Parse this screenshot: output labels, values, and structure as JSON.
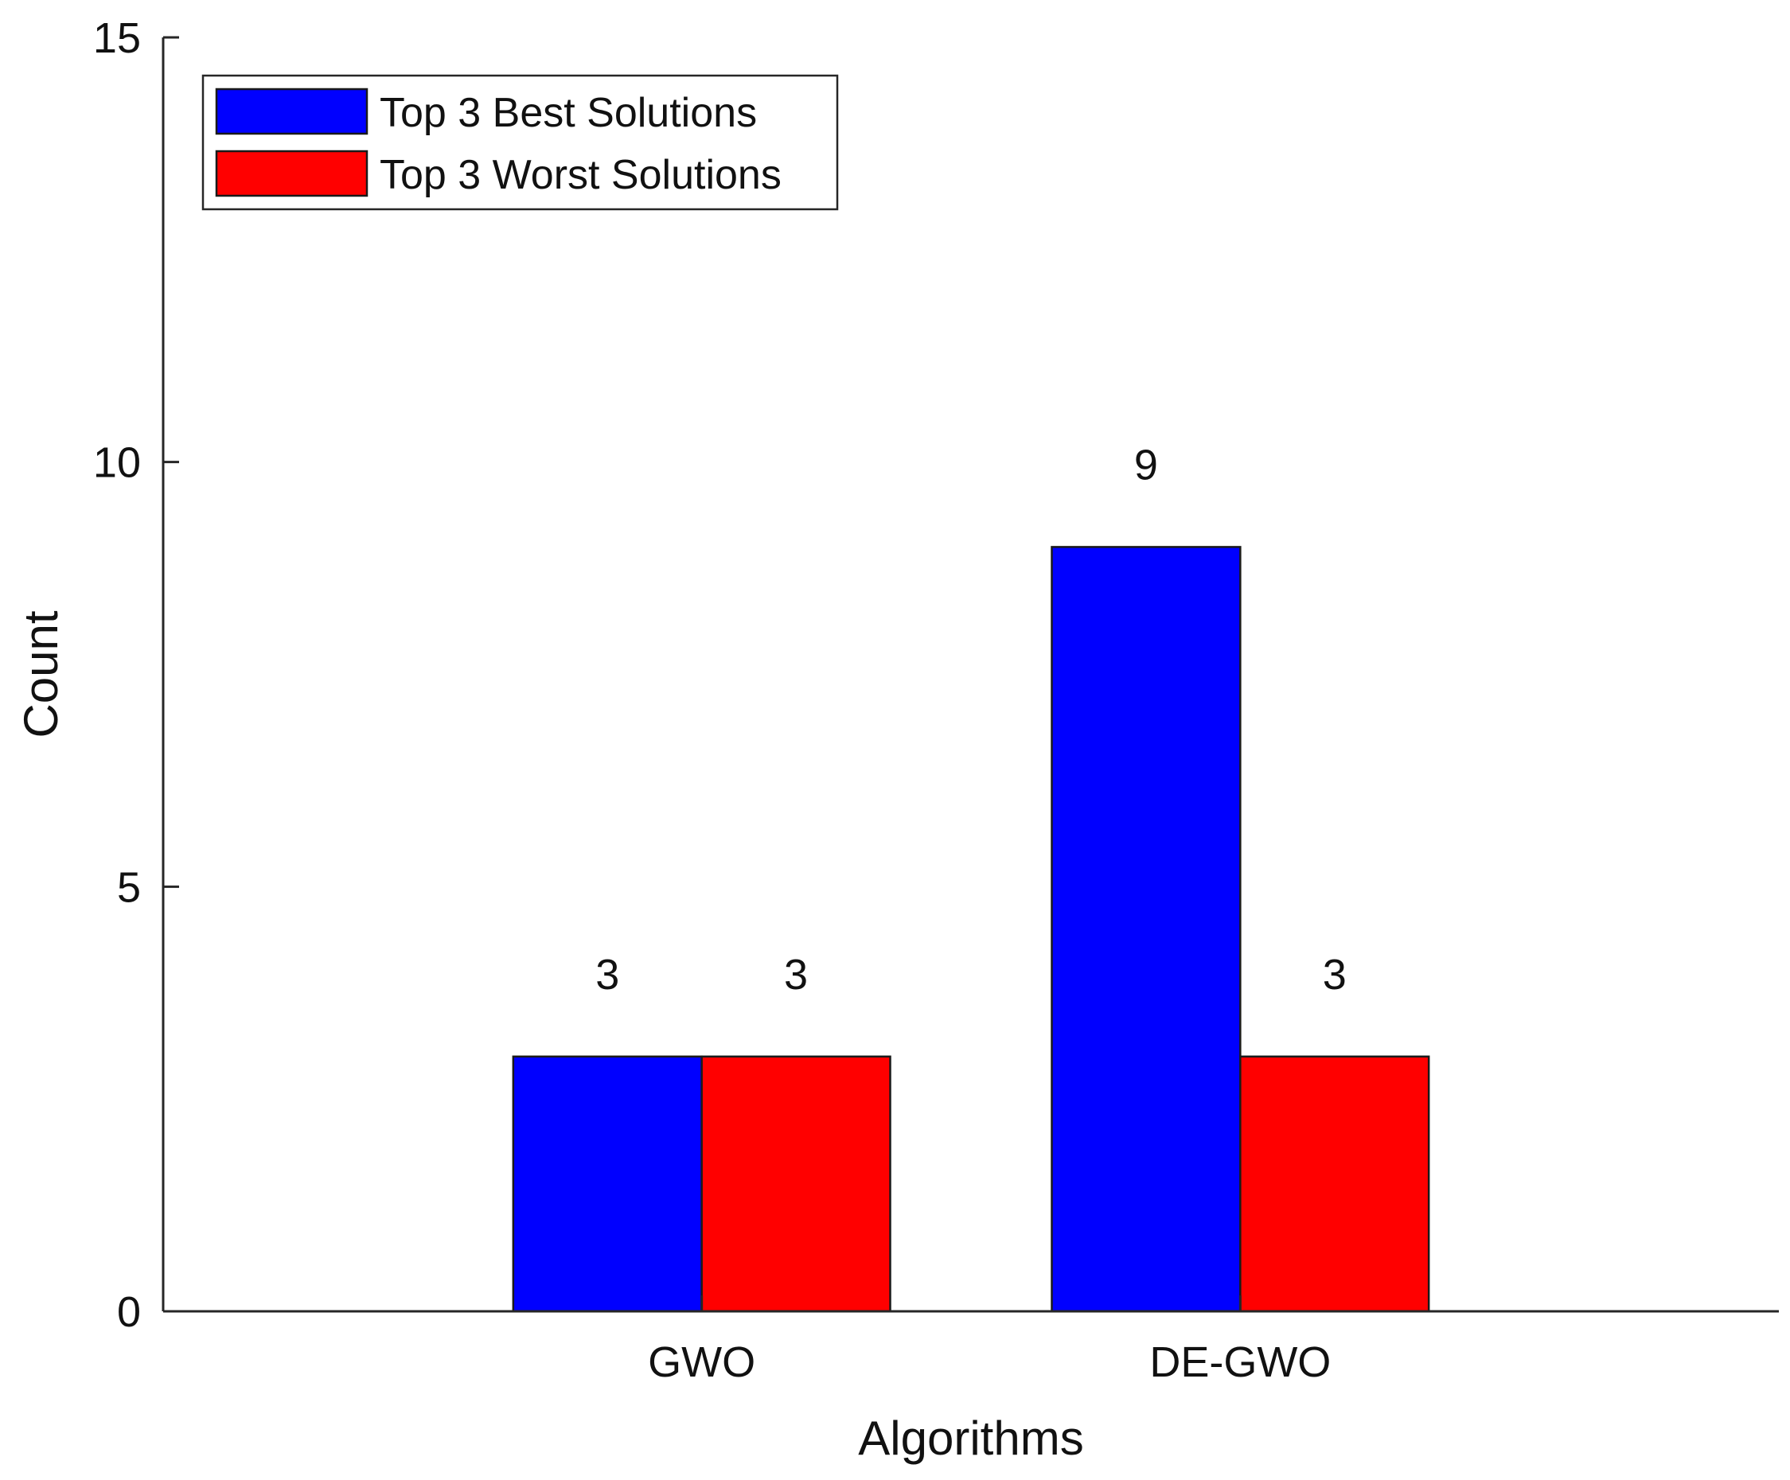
{
  "chart_data": {
    "type": "bar",
    "title": "",
    "xlabel": "Algorithms",
    "ylabel": "Count",
    "categories": [
      "GWO",
      "DE-GWO"
    ],
    "series": [
      {
        "name": "Top 3 Best Solutions",
        "color": "#0000ff",
        "values": [
          3,
          9
        ]
      },
      {
        "name": "Top 3 Worst Solutions",
        "color": "#ff0000",
        "values": [
          3,
          3
        ]
      }
    ],
    "data_labels": [
      [
        "3",
        "9"
      ],
      [
        "3",
        "3"
      ]
    ],
    "ylim": [
      0,
      15
    ],
    "yticks": [
      0,
      5,
      10,
      15
    ],
    "xlim": [
      0,
      3
    ],
    "grid": false,
    "legend_position": "top-left"
  }
}
